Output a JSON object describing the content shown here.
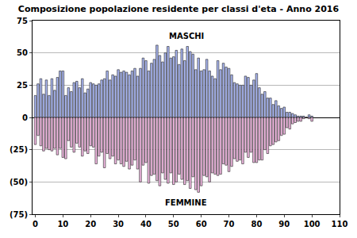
{
  "chart_data": {
    "type": "bar",
    "title": "Composizione popolazione residente per classi d'eta - Anno 2016",
    "x": [
      0,
      1,
      2,
      3,
      4,
      5,
      6,
      7,
      8,
      9,
      10,
      11,
      12,
      13,
      14,
      15,
      16,
      17,
      18,
      19,
      20,
      21,
      22,
      23,
      24,
      25,
      26,
      27,
      28,
      29,
      30,
      31,
      32,
      33,
      34,
      35,
      36,
      37,
      38,
      39,
      40,
      41,
      42,
      43,
      44,
      45,
      46,
      47,
      48,
      49,
      50,
      51,
      52,
      53,
      54,
      55,
      56,
      57,
      58,
      59,
      60,
      61,
      62,
      63,
      64,
      65,
      66,
      67,
      68,
      69,
      70,
      71,
      72,
      73,
      74,
      75,
      76,
      77,
      78,
      79,
      80,
      81,
      82,
      83,
      84,
      85,
      86,
      87,
      88,
      89,
      90,
      91,
      92,
      93,
      94,
      95,
      96,
      97,
      98,
      99,
      100
    ],
    "series": [
      {
        "name": "MASCHI",
        "color": "#a9b6f2",
        "values": [
          17,
          26,
          30,
          18,
          29,
          17,
          30,
          21,
          31,
          36,
          36,
          17,
          23,
          20,
          27,
          28,
          23,
          30,
          19,
          22,
          27,
          26,
          25,
          26,
          29,
          30,
          36,
          29,
          33,
          32,
          37,
          35,
          36,
          35,
          33,
          36,
          38,
          32,
          38,
          46,
          44,
          36,
          42,
          45,
          56,
          48,
          43,
          50,
          55,
          46,
          47,
          52,
          41,
          53,
          44,
          55,
          51,
          49,
          37,
          46,
          36,
          37,
          45,
          36,
          32,
          30,
          44,
          37,
          42,
          39,
          38,
          33,
          27,
          26,
          25,
          25,
          32,
          31,
          25,
          29,
          34,
          23,
          18,
          20,
          15,
          15,
          10,
          13,
          9,
          7,
          8,
          4,
          4,
          3,
          2,
          1,
          1,
          1,
          0,
          2,
          1
        ]
      },
      {
        "name": "FEMMINE",
        "color": "#f2b9e2",
        "values": [
          -21,
          -14,
          -22,
          -26,
          -24,
          -25,
          -26,
          -24,
          -29,
          -24,
          -31,
          -32,
          -18,
          -23,
          -27,
          -20,
          -23,
          -30,
          -26,
          -28,
          -22,
          -23,
          -36,
          -30,
          -27,
          -39,
          -28,
          -32,
          -30,
          -36,
          -33,
          -36,
          -38,
          -34,
          -40,
          -37,
          -33,
          -40,
          -50,
          -37,
          -35,
          -51,
          -45,
          -44,
          -49,
          -53,
          -43,
          -48,
          -51,
          -43,
          -52,
          -50,
          -44,
          -48,
          -52,
          -49,
          -55,
          -46,
          -56,
          -58,
          -53,
          -45,
          -46,
          -50,
          -43,
          -44,
          -45,
          -44,
          -36,
          -37,
          -42,
          -38,
          -32,
          -34,
          -33,
          -36,
          -27,
          -31,
          -27,
          -35,
          -35,
          -33,
          -33,
          -25,
          -28,
          -22,
          -21,
          -19,
          -18,
          -14,
          -13,
          -8,
          -9,
          -5,
          -4,
          -3,
          -3,
          -1,
          0,
          -1,
          -3
        ]
      }
    ],
    "xlim": [
      -1,
      110
    ],
    "xticks": [
      0,
      10,
      20,
      30,
      40,
      50,
      60,
      70,
      80,
      90,
      100,
      110
    ],
    "ylim": [
      -75,
      75
    ],
    "yticks": [
      {
        "value": -75,
        "label": "(75)"
      },
      {
        "value": -50,
        "label": "(50)"
      },
      {
        "value": -25,
        "label": "(25)"
      },
      0,
      25,
      50,
      75
    ],
    "grid": true
  }
}
